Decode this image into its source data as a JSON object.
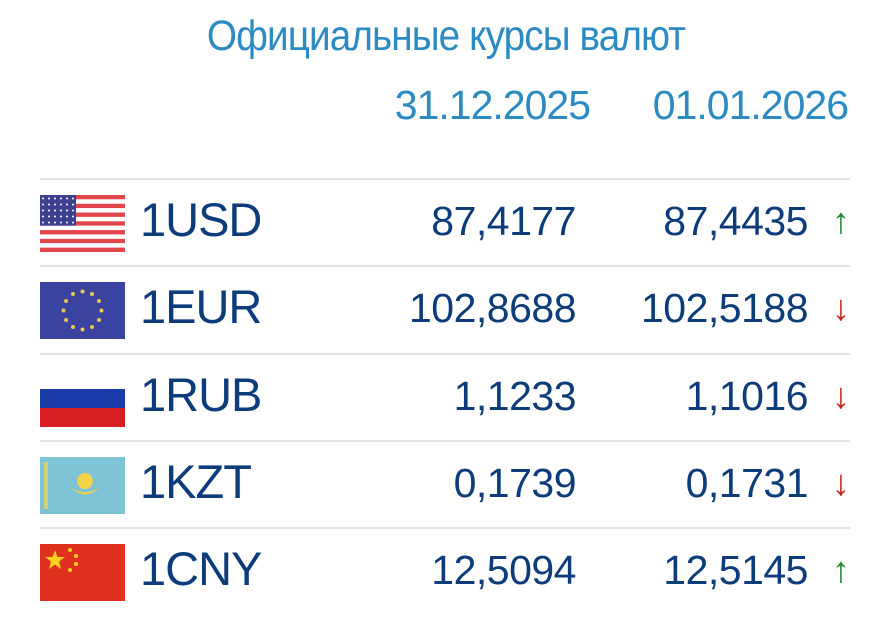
{
  "title": "Официальные курсы валют",
  "dates": [
    "31.12.2025",
    "01.01.2026"
  ],
  "colors": {
    "header": "#2b8bc2",
    "text": "#0c3c7a",
    "up": "#1f8a2e",
    "down": "#c9261c"
  },
  "rows": [
    {
      "code": "1USD",
      "flag": "us-flag",
      "prev": "87,4177",
      "curr": "87,4435",
      "trend": "up",
      "arrow": "↑"
    },
    {
      "code": "1EUR",
      "flag": "eu-flag",
      "prev": "102,8688",
      "curr": "102,5188",
      "trend": "down",
      "arrow": "↓"
    },
    {
      "code": "1RUB",
      "flag": "ru-flag",
      "prev": "1,1233",
      "curr": "1,1016",
      "trend": "down",
      "arrow": "↓"
    },
    {
      "code": "1KZT",
      "flag": "kz-flag",
      "prev": "0,1739",
      "curr": "0,1731",
      "trend": "down",
      "arrow": "↓"
    },
    {
      "code": "1CNY",
      "flag": "cn-flag",
      "prev": "12,5094",
      "curr": "12,5145",
      "trend": "up",
      "arrow": "↑"
    }
  ]
}
